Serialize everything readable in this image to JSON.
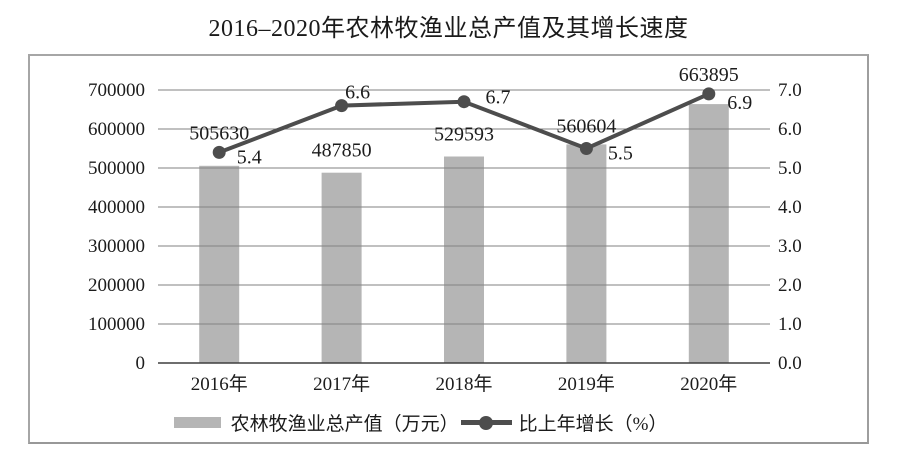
{
  "title": "2016–2020年农林牧渔业总产值及其增长速度",
  "legend": {
    "bar": "农林牧渔业总产值（万元）",
    "line": "比上年增长（%）"
  },
  "colors": {
    "bar": "#b5b5b5",
    "line": "#4d4d4d",
    "grid": "#828282",
    "axis": "#3f3f3f",
    "text": "#1c1c1c",
    "frame_border": "#a6a6a6"
  },
  "chart_data": {
    "type": "bar",
    "subtype": "combo-bar-line",
    "title": "2016–2020年农林牧渔业总产值及其增长速度",
    "categories": [
      "2016年",
      "2017年",
      "2018年",
      "2019年",
      "2020年"
    ],
    "series": [
      {
        "name": "农林牧渔业总产值（万元）",
        "type": "bar",
        "axis": "left",
        "values": [
          505630,
          487850,
          529593,
          560604,
          663895
        ]
      },
      {
        "name": "比上年增长（%）",
        "type": "line",
        "axis": "right",
        "values": [
          5.4,
          6.6,
          6.7,
          5.5,
          6.9
        ]
      }
    ],
    "left_axis": {
      "min": 0,
      "max": 700000,
      "step": 100000,
      "tick_labels": [
        "0",
        "100000",
        "200000",
        "300000",
        "400000",
        "500000",
        "600000",
        "700000"
      ]
    },
    "right_axis": {
      "min": 0,
      "max": 7.0,
      "step": 1.0,
      "tick_labels": [
        "0.0",
        "1.0",
        "2.0",
        "3.0",
        "4.0",
        "5.0",
        "6.0",
        "7.0"
      ]
    },
    "grid": true,
    "data_labels": true,
    "legend_position": "bottom"
  }
}
